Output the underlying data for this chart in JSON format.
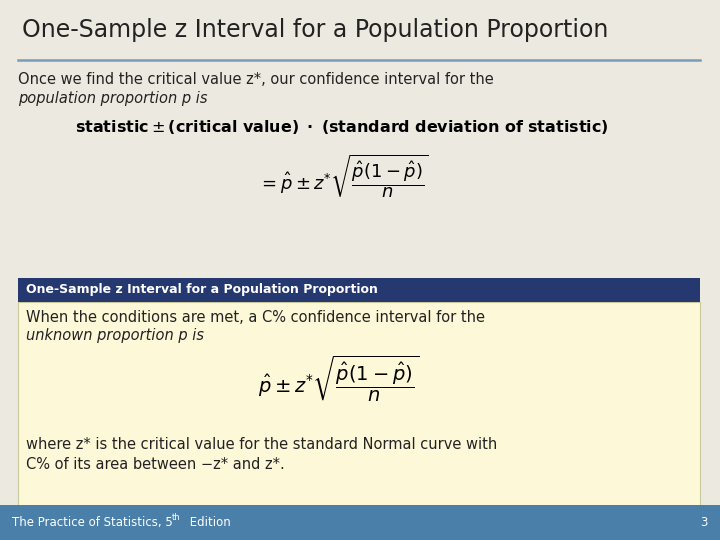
{
  "title": "One-Sample z Interval for a Population Proportion",
  "bg_color": "#eceae0",
  "title_color": "#222222",
  "title_underline_color": "#7a9bb5",
  "header_bg": "#253870",
  "header_text_color": "#ffffff",
  "header_text": "One-Sample z Interval for a Population Proportion",
  "box_bg": "#fdf8d8",
  "box_border": "#c8c89a",
  "footer_bg": "#4a7faa",
  "footer_text_color": "#ffffff",
  "footer_page": "3",
  "intro_line1": "Once we find the critical value z*, our confidence interval for the",
  "intro_line2": "population proportion p is",
  "box_line1": "When the conditions are met, a C% confidence interval for the",
  "box_line2": "unknown proportion p is",
  "box_line3": "where z* is the critical value for the standard Normal curve with",
  "box_line4": "C% of its area between −z* and z*.",
  "formula1": "\\mathbf{statistic} \\pm \\mathbf{(critical\\ value)} \\cdot \\mathbf{(standard\\ deviation\\ of\\ statistic)}",
  "formula2": "= \\hat{p} \\pm z^{*} \\sqrt{\\dfrac{\\hat{p}(1-\\hat{p})}{n}}",
  "formula3": "\\hat{p} \\pm z^{*} \\sqrt{\\dfrac{\\hat{p}(1-\\hat{p})}{n}}"
}
